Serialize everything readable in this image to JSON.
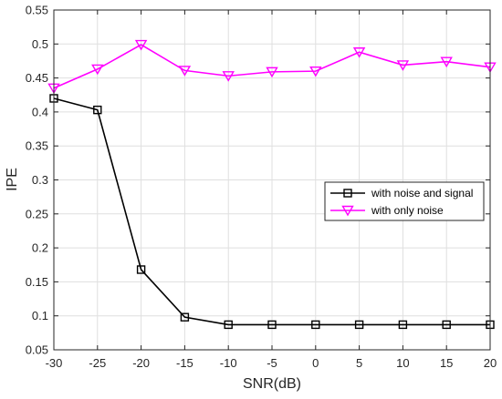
{
  "chart_data": {
    "type": "line",
    "title": "",
    "xlabel": "SNR(dB)",
    "ylabel": "IPE",
    "x": [
      -30,
      -25,
      -20,
      -15,
      -10,
      -5,
      0,
      5,
      10,
      15,
      20
    ],
    "xlim": [
      -30,
      20
    ],
    "ylim": [
      0.05,
      0.55
    ],
    "xticks": [
      -30,
      -25,
      -20,
      -15,
      -10,
      -5,
      0,
      5,
      10,
      15,
      20
    ],
    "xtick_labels": [
      "-30",
      "-25",
      "-20",
      "-15",
      "-10",
      "-5",
      "0",
      "5",
      "10",
      "15",
      "20"
    ],
    "yticks": [
      0.05,
      0.1,
      0.15,
      0.2,
      0.25,
      0.3,
      0.35,
      0.4,
      0.45,
      0.5,
      0.55
    ],
    "ytick_labels": [
      "0.05",
      "0.1",
      "0.15",
      "0.2",
      "0.25",
      "0.3",
      "0.35",
      "0.4",
      "0.45",
      "0.5",
      "0.55"
    ],
    "grid": true,
    "legend_position": "right",
    "series": [
      {
        "name": "with noise and signal",
        "color": "#000000",
        "marker": "square",
        "values": [
          0.42,
          0.403,
          0.168,
          0.098,
          0.087,
          0.087,
          0.087,
          0.087,
          0.087,
          0.087,
          0.087
        ]
      },
      {
        "name": "with only noise",
        "color": "#ff00ff",
        "marker": "triangle-down",
        "values": [
          0.435,
          0.463,
          0.499,
          0.461,
          0.453,
          0.459,
          0.46,
          0.488,
          0.469,
          0.474,
          0.466
        ]
      }
    ]
  }
}
